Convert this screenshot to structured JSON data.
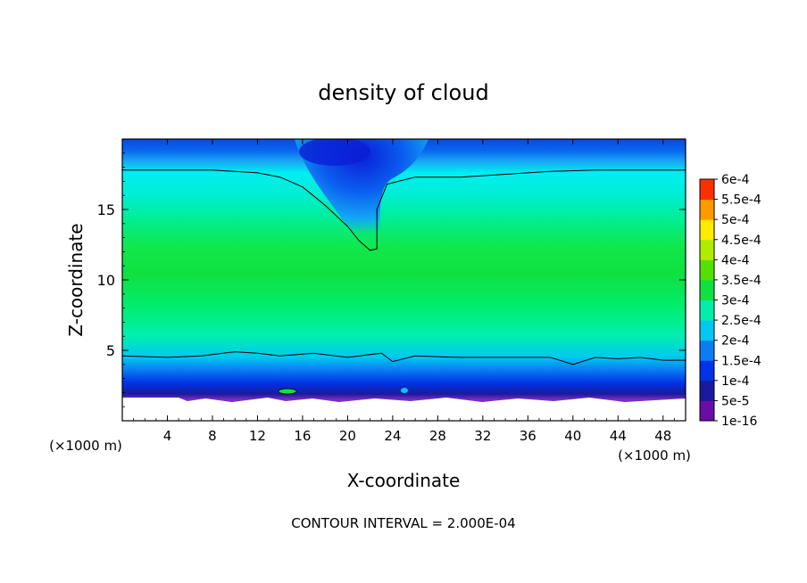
{
  "chart_data": {
    "type": "heatmap",
    "title": "density of cloud",
    "xlabel": "X-coordinate",
    "ylabel": "Z-coordinate",
    "x_unit_left": "(×1000 m)",
    "x_unit_right": "(×1000 m)",
    "xlim": [
      0,
      50
    ],
    "ylim": [
      0,
      20
    ],
    "x_ticks": [
      4,
      8,
      12,
      16,
      20,
      24,
      28,
      32,
      36,
      40,
      44,
      48
    ],
    "y_ticks": [
      5,
      10,
      15
    ],
    "footer": "CONTOUR INTERVAL = 2.000E-04",
    "contour_interval": 0.0002,
    "colorbar": {
      "levels": [
        {
          "label": "1e-16",
          "value": 1e-16,
          "color": "#6a0da8"
        },
        {
          "label": "5e-5",
          "value": 5e-05,
          "color": "#1a1a9e"
        },
        {
          "label": "1e-4",
          "value": 0.0001,
          "color": "#0033e6"
        },
        {
          "label": "1.5e-4",
          "value": 0.00015,
          "color": "#0a7df2"
        },
        {
          "label": "2e-4",
          "value": 0.0002,
          "color": "#00c8f0"
        },
        {
          "label": "2.5e-4",
          "value": 0.00025,
          "color": "#00eeaa"
        },
        {
          "label": "3e-4",
          "value": 0.0003,
          "color": "#10e040"
        },
        {
          "label": "3.5e-4",
          "value": 0.00035,
          "color": "#55e000"
        },
        {
          "label": "4e-4",
          "value": 0.0004,
          "color": "#b0ec00"
        },
        {
          "label": "4.5e-4",
          "value": 0.00045,
          "color": "#ffea00"
        },
        {
          "label": "5e-4",
          "value": 0.0005,
          "color": "#ff9a00"
        },
        {
          "label": "5.5e-4",
          "value": 0.00055,
          "color": "#ff3000"
        },
        {
          "label": "6e-4",
          "value": 0.0006,
          "color": "#ff8080"
        }
      ]
    },
    "contour_2e-4": [
      [
        0,
        17.8
      ],
      [
        4,
        17.8
      ],
      [
        8,
        17.8
      ],
      [
        12,
        17.6
      ],
      [
        14,
        17.3
      ],
      [
        16,
        16.6
      ],
      [
        18,
        15.3
      ],
      [
        20,
        13.8
      ],
      [
        21,
        12.8
      ],
      [
        22,
        12.1
      ],
      [
        22.6,
        12.2
      ],
      [
        22.6,
        13.5
      ],
      [
        22.6,
        15.0
      ],
      [
        23.5,
        16.8
      ],
      [
        26,
        17.3
      ],
      [
        30,
        17.3
      ],
      [
        34,
        17.5
      ],
      [
        38,
        17.7
      ],
      [
        42,
        17.8
      ],
      [
        46,
        17.8
      ],
      [
        50,
        17.8
      ]
    ],
    "contour_1.5e-4": [
      [
        0,
        4.6
      ],
      [
        4,
        4.5
      ],
      [
        7,
        4.6
      ],
      [
        10,
        4.9
      ],
      [
        12,
        4.8
      ],
      [
        14,
        4.6
      ],
      [
        17,
        4.8
      ],
      [
        20,
        4.5
      ],
      [
        23,
        4.8
      ],
      [
        24,
        4.2
      ],
      [
        26,
        4.6
      ],
      [
        30,
        4.5
      ],
      [
        34,
        4.5
      ],
      [
        38,
        4.5
      ],
      [
        40,
        4.0
      ],
      [
        42,
        4.5
      ],
      [
        44,
        4.4
      ],
      [
        46,
        4.5
      ],
      [
        48,
        4.3
      ],
      [
        50,
        4.3
      ]
    ]
  }
}
